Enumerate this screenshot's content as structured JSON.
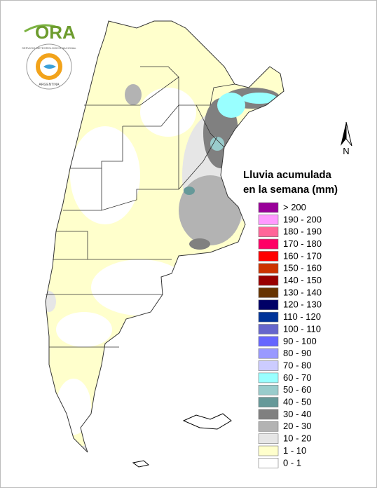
{
  "logo": {
    "name": "ORA",
    "seal_top": "SERVICIO METEOROLOGICO NACIONAL",
    "seal_bottom": "ARGENTINA"
  },
  "compass": "N",
  "legend": {
    "title_lines": [
      "Lluvia acumulada",
      "en la semana (mm)"
    ],
    "items": [
      {
        "label": "> 200",
        "color": "#990099"
      },
      {
        "label": "190 - 200",
        "color": "#ff99ff"
      },
      {
        "label": "180 - 190",
        "color": "#ff6699"
      },
      {
        "label": "170 - 180",
        "color": "#ff0066"
      },
      {
        "label": "160 - 170",
        "color": "#ff0000"
      },
      {
        "label": "150 - 160",
        "color": "#cc3300"
      },
      {
        "label": "140 - 150",
        "color": "#990000"
      },
      {
        "label": "130 - 140",
        "color": "#663300"
      },
      {
        "label": "120 - 130",
        "color": "#000066"
      },
      {
        "label": "110 - 120",
        "color": "#003399"
      },
      {
        "label": "100 - 110",
        "color": "#6666cc"
      },
      {
        "label": "90 - 100",
        "color": "#6666ff"
      },
      {
        "label": "80 - 90",
        "color": "#9999ff"
      },
      {
        "label": "70 - 80",
        "color": "#ccccff"
      },
      {
        "label": "60 - 70",
        "color": "#99ffff"
      },
      {
        "label": "50 - 60",
        "color": "#99cccc"
      },
      {
        "label": "40 - 50",
        "color": "#669999"
      },
      {
        "label": "30 - 40",
        "color": "#808080"
      },
      {
        "label": "20 - 30",
        "color": "#b3b3b3"
      },
      {
        "label": "10 - 20",
        "color": "#e6e6e6"
      },
      {
        "label": "1 - 10",
        "color": "#ffffcc"
      },
      {
        "label": "0 - 1",
        "color": "#ffffff"
      }
    ]
  }
}
